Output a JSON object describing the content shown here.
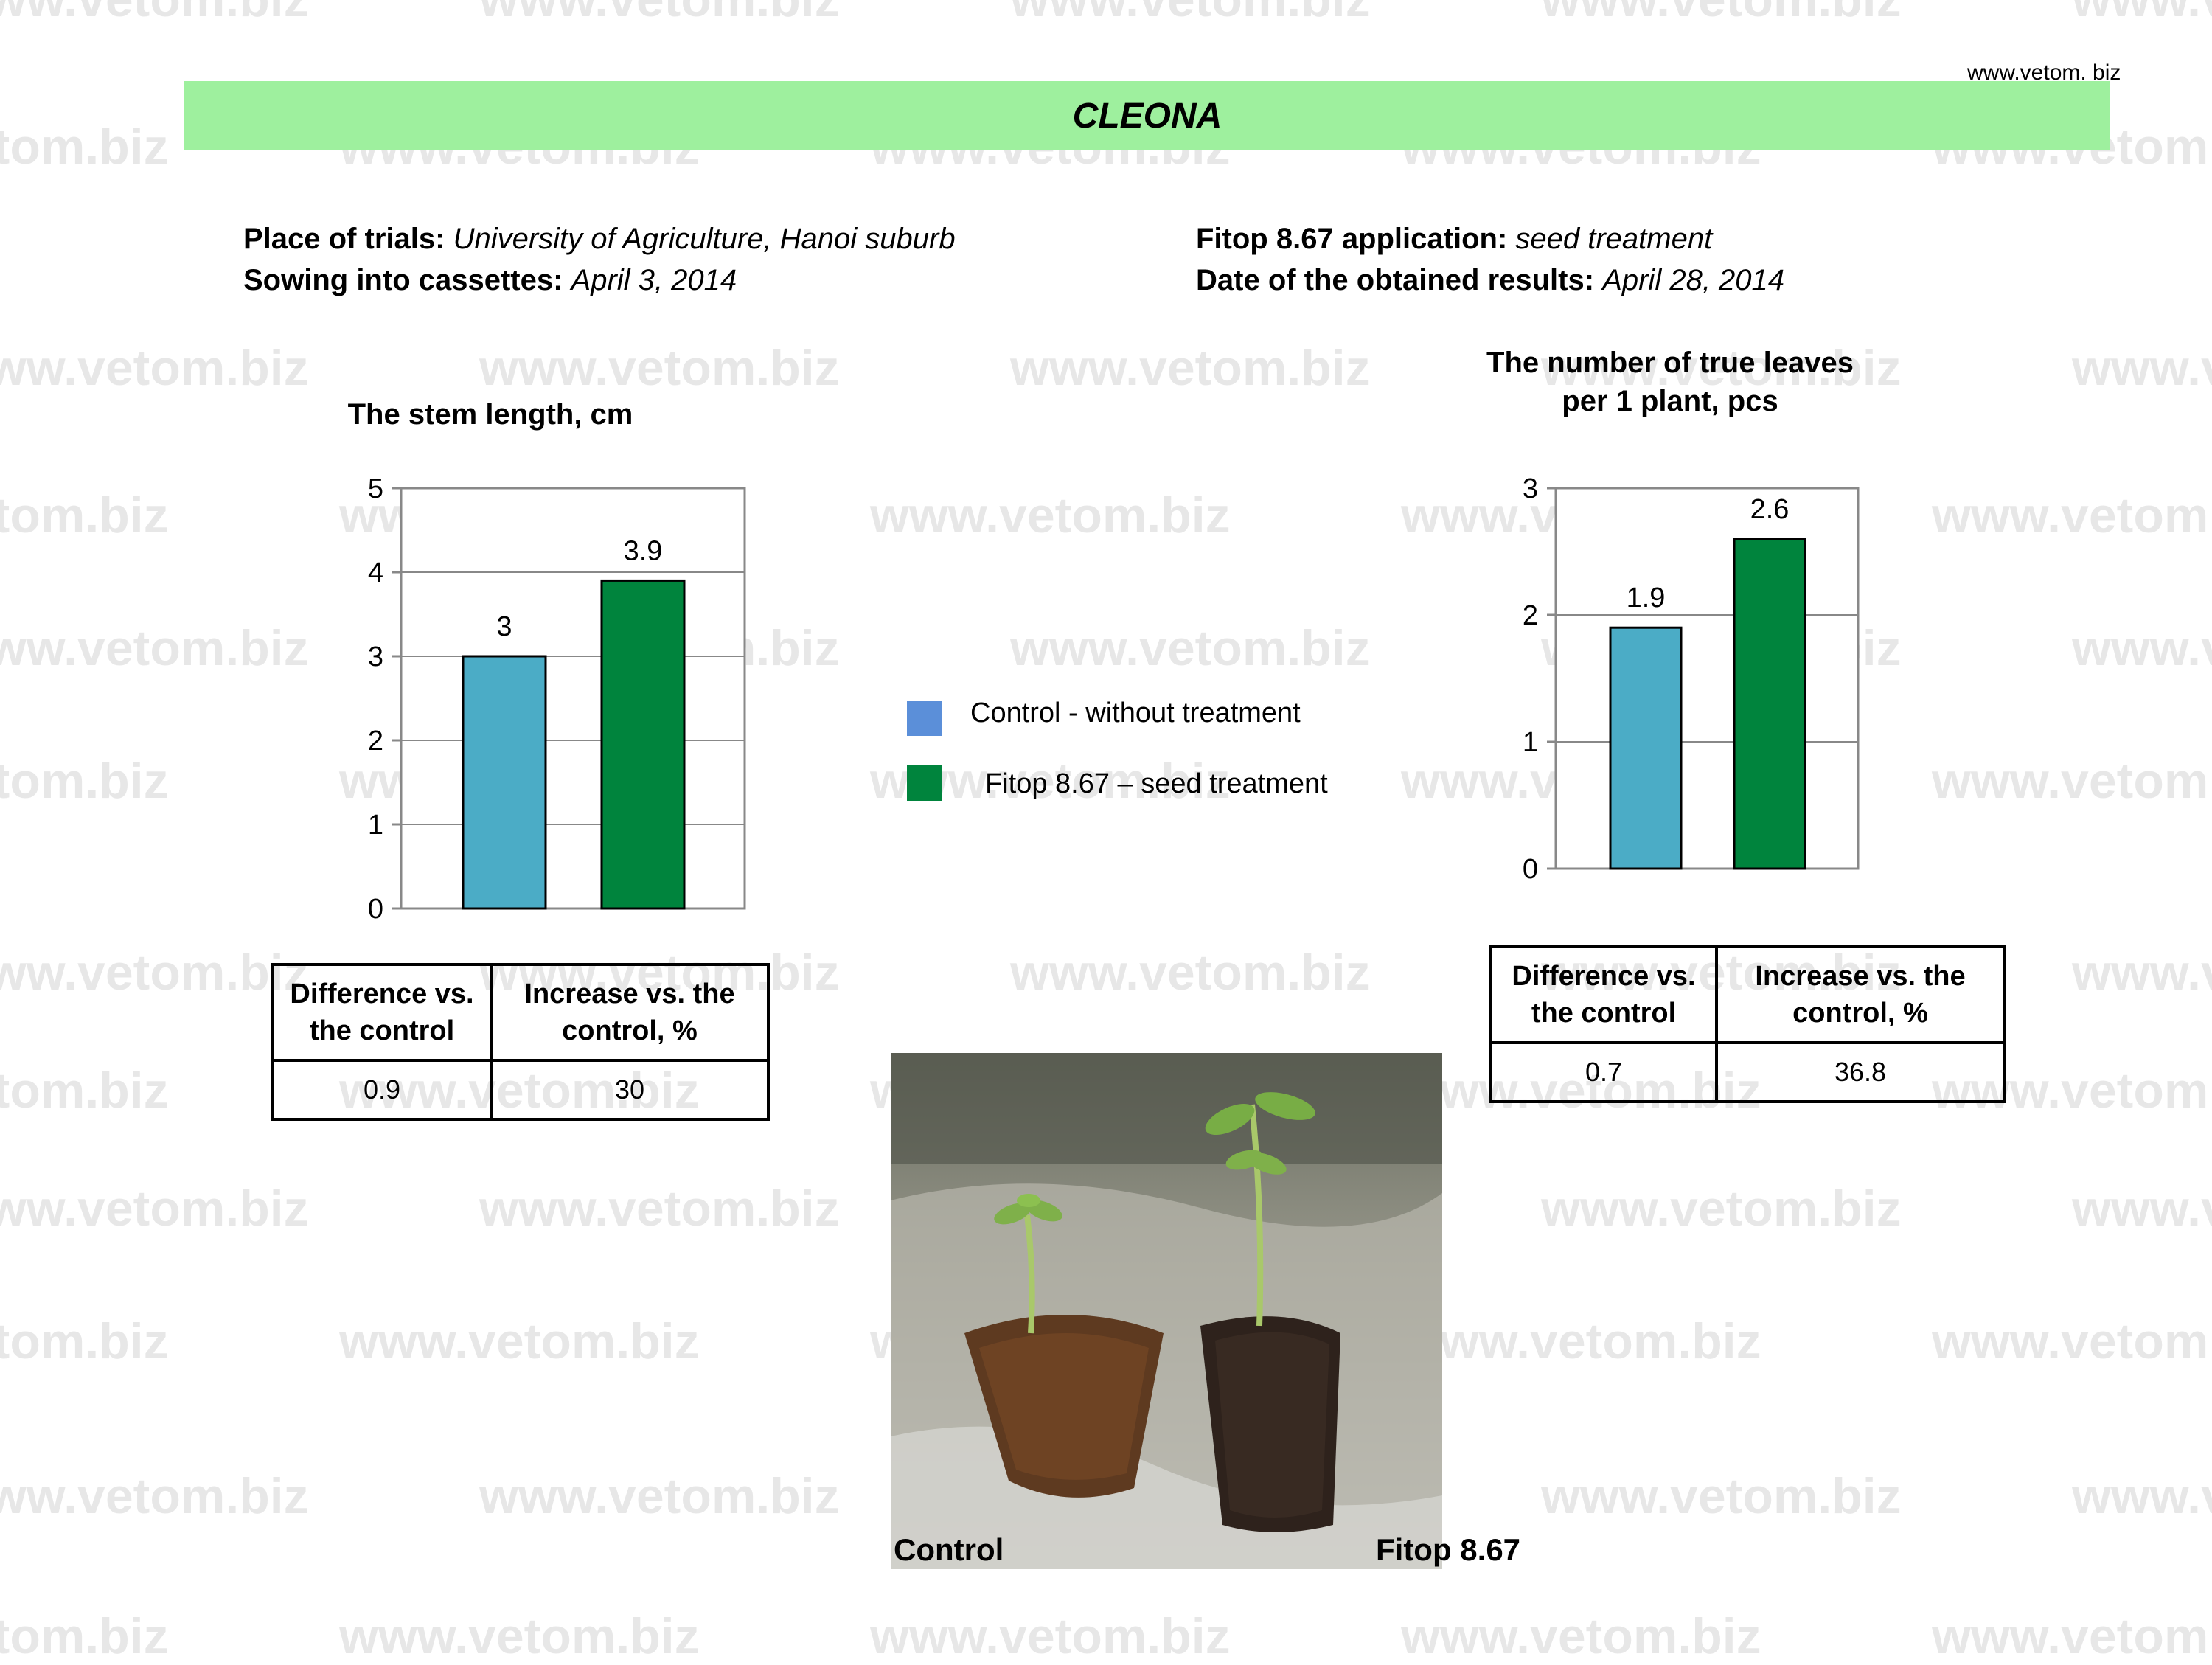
{
  "watermark_text": "www.vetom.biz",
  "header": {
    "url": "www.vetom. biz",
    "title": "CLEONA"
  },
  "info": {
    "place_label": "Place of trials:",
    "place_value": "University of Agriculture, Hanoi suburb",
    "sowing_label": "Sowing into cassettes:",
    "sowing_value": "April  3, 2014",
    "application_label": "Fitop 8.67 application:",
    "application_value": "seed treatment",
    "results_label": "Date of  the obtained results:",
    "results_value": "April 28, 2014"
  },
  "chart_data": [
    {
      "type": "bar",
      "title": "The stem length, cm",
      "categories": [
        "Control - without treatment",
        "Fitop 8.67 – seed treatment"
      ],
      "values": [
        3,
        3.9
      ],
      "value_labels": [
        "3",
        "3.9"
      ],
      "ylim": [
        0,
        5
      ],
      "yticks": [
        "0",
        "1",
        "2",
        "3",
        "4",
        "5"
      ],
      "grid": true,
      "colors": [
        "#4bacc6",
        "#00843d"
      ]
    },
    {
      "type": "bar",
      "title_line1": "The number of true leaves",
      "title_line2": "per 1 plant, pcs",
      "categories": [
        "Control - without treatment",
        "Fitop 8.67 – seed treatment"
      ],
      "values": [
        1.9,
        2.6
      ],
      "value_labels": [
        "1.9",
        "2.6"
      ],
      "ylim": [
        0,
        3
      ],
      "yticks": [
        "0",
        "1",
        "2",
        "3"
      ],
      "grid": true,
      "colors": [
        "#4bacc6",
        "#00843d"
      ]
    }
  ],
  "legend": {
    "items": [
      {
        "label": "Control - without treatment",
        "color": "#5b8fd9"
      },
      {
        "label": "Fitop 8.67 – seed treatment",
        "color": "#00843d"
      }
    ]
  },
  "table_left": {
    "header1": "Difference vs. the control",
    "header2": "Increase vs. the control, %",
    "value1": "0.9",
    "value2": "30"
  },
  "table_right": {
    "header1": "Difference vs. the control",
    "header2": "Increase vs. the control, %",
    "value1": "0.7",
    "value2": "36.8"
  },
  "photo": {
    "label_left": "Control",
    "label_right": "Fitop 8.67"
  }
}
